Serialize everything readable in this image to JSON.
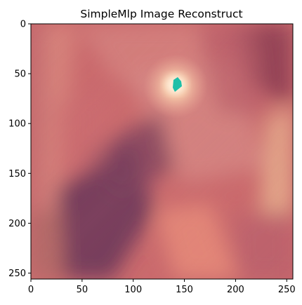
{
  "chart_data": {
    "type": "heatmap",
    "title": "SimpleMlp Image Reconstruct",
    "xlabel": "",
    "ylabel": "",
    "image_size": [
      256,
      256
    ],
    "xlim": [
      0,
      256
    ],
    "ylim": [
      256,
      0
    ],
    "y_axis_inverted": true,
    "x_ticks": [
      0,
      50,
      100,
      150,
      200,
      250
    ],
    "y_ticks": [
      0,
      50,
      100,
      150,
      200,
      250
    ],
    "grid": false,
    "legend": "none",
    "colors": {
      "base": "#c9686c",
      "rose_light": "#d4827f",
      "salmon": "#e88b7a",
      "dark_maroon": "#7c2f4b",
      "plum_shadow": "#5c2e55",
      "glow_center": "#fde4c4",
      "peach": "#e6ad8d",
      "highlight_dot": "#1ebfa8"
    },
    "features": [
      {
        "name": "bright-glow",
        "x": 142,
        "y": 62,
        "color": "#fde4c4"
      },
      {
        "name": "teal-marker",
        "x": 144,
        "y": 61,
        "color": "#1ebfa8"
      },
      {
        "name": "dark-plum-region",
        "x": 70,
        "y": 210,
        "color": "#5c2e55"
      },
      {
        "name": "dark-maroon-corner",
        "x": 250,
        "y": 40,
        "color": "#7c2f4b"
      },
      {
        "name": "peach-band-right",
        "x": 252,
        "y": 160,
        "color": "#e6ad8d"
      },
      {
        "name": "salmon-bottom",
        "x": 160,
        "y": 250,
        "color": "#e88b7a"
      }
    ]
  }
}
